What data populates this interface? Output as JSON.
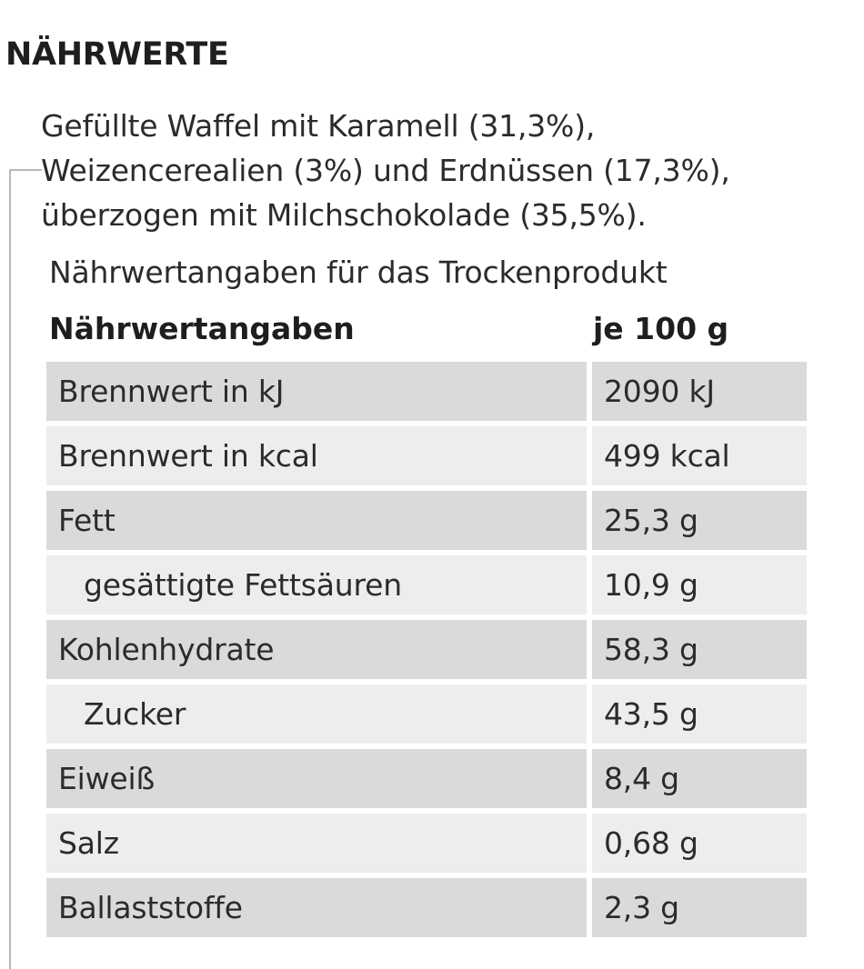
{
  "section_title": "NÄHRWERTE",
  "description_lines": [
    "Gefüllte Waffel mit Karamell (31,3%),",
    "Weizencerealien (3%) und Erdnüssen (17,3%),",
    "überzogen mit Milchschokolade (35,5%)."
  ],
  "nutrition": {
    "caption": "Nährwertangaben für das Trockenprodukt",
    "header": {
      "name": "Nährwertangaben",
      "value": "je 100 g"
    },
    "rows": [
      {
        "name": "Brennwert in kJ",
        "value": "2090 kJ"
      },
      {
        "name": "Brennwert in kcal",
        "value": "499 kcal"
      },
      {
        "name": "Fett",
        "value": "25,3 g"
      },
      {
        "name": "gesättigte Fettsäuren",
        "value": "10,9 g"
      },
      {
        "name": "Kohlenhydrate",
        "value": "58,3 g"
      },
      {
        "name": "Zucker",
        "value": "43,5 g"
      },
      {
        "name": "Eiweiß",
        "value": "8,4 g"
      },
      {
        "name": "Salz",
        "value": "0,68 g"
      },
      {
        "name": "Ballaststoffe",
        "value": "2,3 g"
      }
    ]
  }
}
